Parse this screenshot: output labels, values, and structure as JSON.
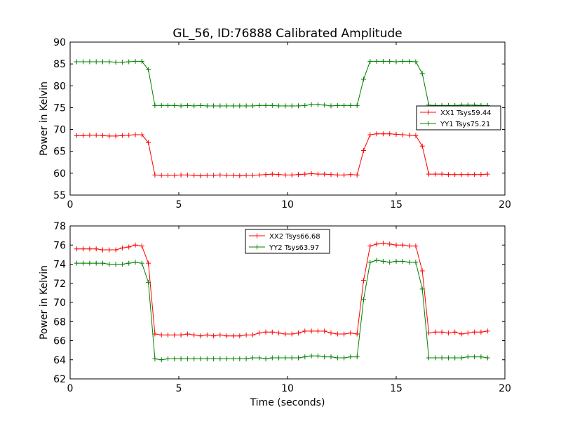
{
  "figure": {
    "title": "GL_56, ID:76888 Calibrated Amplitude",
    "xlabel": "Time (seconds)"
  },
  "chart_data": [
    {
      "type": "line",
      "ylabel": "Power in Kelvin",
      "xlim": [
        0,
        20
      ],
      "ylim": [
        55,
        90
      ],
      "xticks": [
        "0",
        "5",
        "10",
        "15",
        "20"
      ],
      "yticks": [
        "55",
        "60",
        "65",
        "70",
        "75",
        "80",
        "85",
        "90"
      ],
      "grid": false,
      "legend_position": "right",
      "x": [
        0.3,
        0.6,
        0.9,
        1.2,
        1.5,
        1.8,
        2.1,
        2.4,
        2.7,
        3.0,
        3.3,
        3.6,
        3.9,
        4.2,
        4.5,
        4.8,
        5.1,
        5.4,
        5.7,
        6.0,
        6.3,
        6.6,
        6.9,
        7.2,
        7.5,
        7.8,
        8.1,
        8.4,
        8.7,
        9.0,
        9.3,
        9.6,
        9.9,
        10.2,
        10.5,
        10.8,
        11.1,
        11.4,
        11.7,
        12.0,
        12.3,
        12.6,
        12.9,
        13.2,
        13.5,
        13.8,
        14.1,
        14.4,
        14.7,
        15.0,
        15.3,
        15.6,
        15.9,
        16.2,
        16.5,
        16.8,
        17.1,
        17.4,
        17.7,
        18.0,
        18.3,
        18.6,
        18.9,
        19.2
      ],
      "series": [
        {
          "name": "XX1 Tsys59.44",
          "color": "#ff0000",
          "values": [
            68.6,
            68.6,
            68.7,
            68.7,
            68.6,
            68.5,
            68.5,
            68.6,
            68.7,
            68.8,
            68.8,
            67.0,
            59.6,
            59.5,
            59.5,
            59.5,
            59.6,
            59.6,
            59.5,
            59.4,
            59.5,
            59.5,
            59.6,
            59.5,
            59.5,
            59.4,
            59.5,
            59.5,
            59.6,
            59.7,
            59.8,
            59.7,
            59.6,
            59.6,
            59.7,
            59.8,
            59.9,
            59.8,
            59.8,
            59.7,
            59.6,
            59.6,
            59.7,
            59.6,
            65.2,
            68.8,
            69.0,
            69.0,
            69.0,
            68.9,
            68.8,
            68.7,
            68.6,
            66.2,
            59.8,
            59.8,
            59.8,
            59.7,
            59.7,
            59.7,
            59.7,
            59.7,
            59.7,
            59.8
          ]
        },
        {
          "name": "YY1 Tsys75.21",
          "color": "#008000",
          "values": [
            85.5,
            85.5,
            85.5,
            85.5,
            85.5,
            85.5,
            85.4,
            85.4,
            85.5,
            85.6,
            85.6,
            83.7,
            75.5,
            75.5,
            75.5,
            75.5,
            75.4,
            75.5,
            75.4,
            75.5,
            75.4,
            75.4,
            75.4,
            75.4,
            75.4,
            75.4,
            75.4,
            75.4,
            75.5,
            75.5,
            75.5,
            75.4,
            75.4,
            75.4,
            75.4,
            75.5,
            75.7,
            75.7,
            75.6,
            75.4,
            75.5,
            75.5,
            75.5,
            75.5,
            81.5,
            85.6,
            85.6,
            85.6,
            85.6,
            85.5,
            85.6,
            85.6,
            85.5,
            82.8,
            75.6,
            75.5,
            75.5,
            75.5,
            75.5,
            75.6,
            75.6,
            75.6,
            75.5,
            75.5
          ]
        }
      ]
    },
    {
      "type": "line",
      "ylabel": "Power in Kelvin",
      "xlim": [
        0,
        20
      ],
      "ylim": [
        62,
        78
      ],
      "xticks": [
        "0",
        "5",
        "10",
        "15",
        "20"
      ],
      "yticks": [
        "62",
        "64",
        "66",
        "68",
        "70",
        "72",
        "74",
        "76",
        "78"
      ],
      "grid": false,
      "legend_position": "top-center",
      "x": [
        0.3,
        0.6,
        0.9,
        1.2,
        1.5,
        1.8,
        2.1,
        2.4,
        2.7,
        3.0,
        3.3,
        3.6,
        3.9,
        4.2,
        4.5,
        4.8,
        5.1,
        5.4,
        5.7,
        6.0,
        6.3,
        6.6,
        6.9,
        7.2,
        7.5,
        7.8,
        8.1,
        8.4,
        8.7,
        9.0,
        9.3,
        9.6,
        9.9,
        10.2,
        10.5,
        10.8,
        11.1,
        11.4,
        11.7,
        12.0,
        12.3,
        12.6,
        12.9,
        13.2,
        13.5,
        13.8,
        14.1,
        14.4,
        14.7,
        15.0,
        15.3,
        15.6,
        15.9,
        16.2,
        16.5,
        16.8,
        17.1,
        17.4,
        17.7,
        18.0,
        18.3,
        18.6,
        18.9,
        19.2
      ],
      "series": [
        {
          "name": "XX2 Tsys66.68",
          "color": "#ff0000",
          "values": [
            75.6,
            75.6,
            75.6,
            75.6,
            75.5,
            75.5,
            75.5,
            75.7,
            75.8,
            76.0,
            75.9,
            74.1,
            66.7,
            66.6,
            66.6,
            66.6,
            66.6,
            66.7,
            66.6,
            66.5,
            66.6,
            66.5,
            66.6,
            66.5,
            66.5,
            66.5,
            66.6,
            66.6,
            66.8,
            66.9,
            66.9,
            66.8,
            66.7,
            66.7,
            66.8,
            67.0,
            67.0,
            67.0,
            67.0,
            66.8,
            66.7,
            66.7,
            66.8,
            66.7,
            72.3,
            75.9,
            76.1,
            76.2,
            76.1,
            76.0,
            76.0,
            75.9,
            75.9,
            73.3,
            66.8,
            66.9,
            66.9,
            66.8,
            66.9,
            66.7,
            66.8,
            66.9,
            66.9,
            67.0
          ]
        },
        {
          "name": "YY2 Tsys63.97",
          "color": "#008000",
          "values": [
            74.1,
            74.1,
            74.1,
            74.1,
            74.1,
            74.0,
            74.0,
            74.0,
            74.1,
            74.2,
            74.1,
            72.1,
            64.1,
            64.0,
            64.1,
            64.1,
            64.1,
            64.1,
            64.1,
            64.1,
            64.1,
            64.1,
            64.1,
            64.1,
            64.1,
            64.1,
            64.1,
            64.2,
            64.2,
            64.1,
            64.2,
            64.2,
            64.2,
            64.2,
            64.2,
            64.3,
            64.4,
            64.4,
            64.3,
            64.3,
            64.2,
            64.2,
            64.3,
            64.3,
            70.3,
            74.2,
            74.4,
            74.3,
            74.2,
            74.3,
            74.3,
            74.2,
            74.2,
            71.4,
            64.2,
            64.2,
            64.2,
            64.2,
            64.2,
            64.2,
            64.3,
            64.3,
            64.3,
            64.2
          ]
        }
      ]
    }
  ]
}
